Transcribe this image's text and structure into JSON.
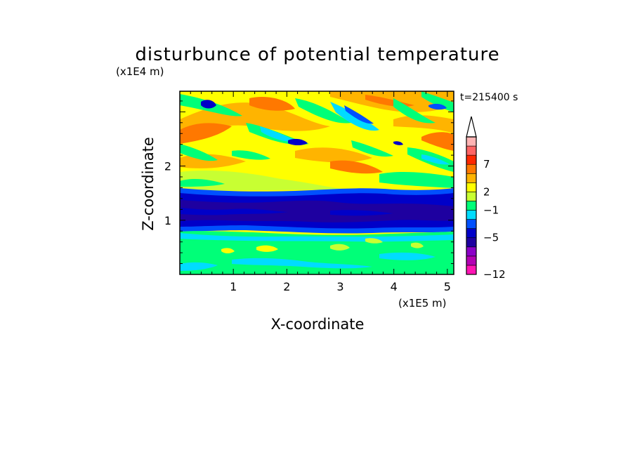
{
  "chart_data": {
    "type": "heatmap",
    "title": "disturbunce of potential temperature",
    "xlabel": "X-coordinate",
    "ylabel": "Z-coordinate",
    "x_unit": "(x1E5 m)",
    "y_unit": "(x1E4 m)",
    "time_label": "t=215400 s",
    "xlim": [
      0,
      5.12
    ],
    "ylim": [
      0,
      3.38
    ],
    "x_ticks": [
      "1",
      "2",
      "3",
      "4",
      "5"
    ],
    "y_ticks": [
      "1",
      "2"
    ],
    "colorbar": {
      "labels": [
        "7",
        "2",
        "−1",
        "−5",
        "−12"
      ],
      "colors": [
        "#ff14b4",
        "#b400b4",
        "#8c00c8",
        "#1e00a0",
        "#0000c8",
        "#0050ff",
        "#00dcff",
        "#00ff78",
        "#c8ff32",
        "#ffff00",
        "#ffb400",
        "#ff7800",
        "#ff2800",
        "#ff6464",
        "#ffb4b4"
      ],
      "extend_top": true
    },
    "colors": {
      "upper_layer": "#ffff00",
      "warm_band": "#ffb400",
      "cold_band": "#0000c8",
      "coldest_band": "#1e00a0",
      "lower_layer": "#00ff78"
    }
  }
}
